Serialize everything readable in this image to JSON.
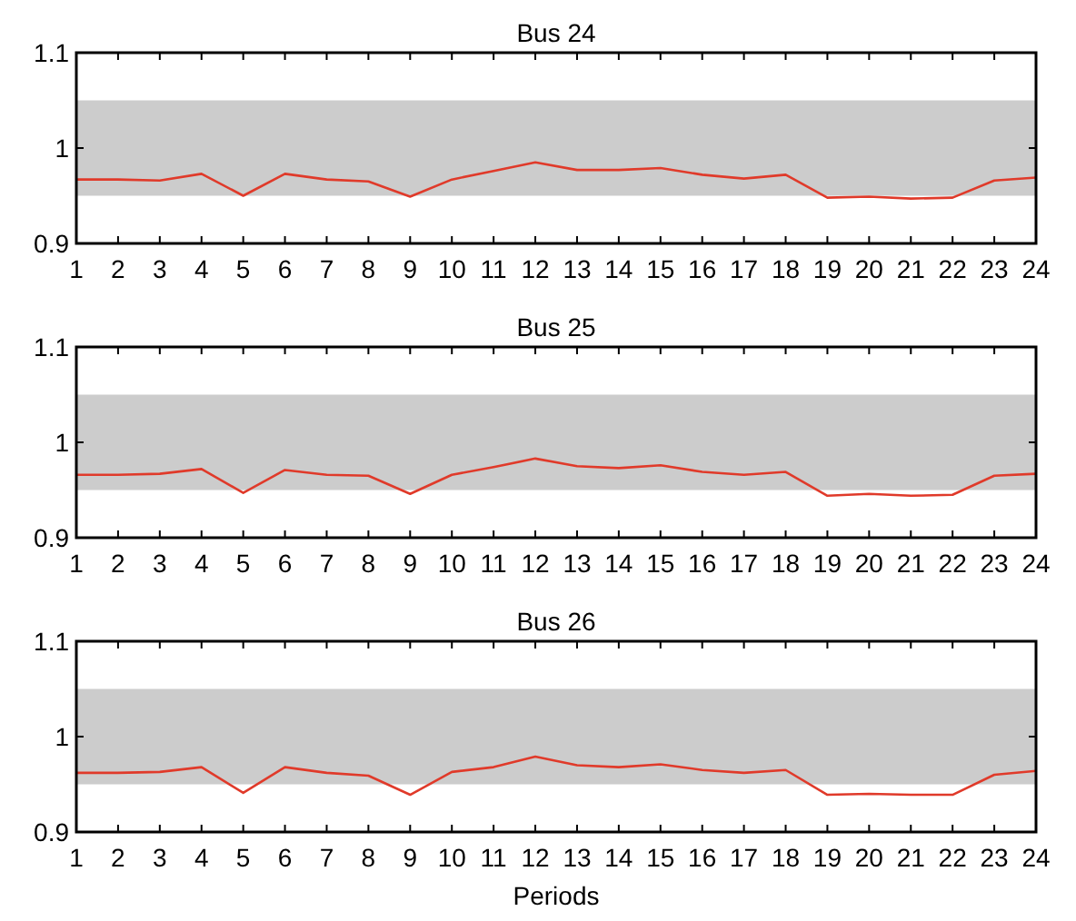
{
  "chart_data": [
    {
      "type": "line",
      "title": "Bus 24",
      "x": [
        1,
        2,
        3,
        4,
        5,
        6,
        7,
        8,
        9,
        10,
        11,
        12,
        13,
        14,
        15,
        16,
        17,
        18,
        19,
        20,
        21,
        22,
        23,
        24
      ],
      "series": [
        {
          "color": "#e03a2a",
          "values": [
            0.967,
            0.967,
            0.966,
            0.973,
            0.95,
            0.973,
            0.967,
            0.965,
            0.949,
            0.967,
            0.976,
            0.985,
            0.977,
            0.977,
            0.979,
            0.972,
            0.968,
            0.972,
            0.948,
            0.949,
            0.947,
            0.948,
            0.966,
            0.969
          ]
        }
      ],
      "xlim": [
        1,
        24
      ],
      "xticks": [
        1,
        2,
        3,
        4,
        5,
        6,
        7,
        8,
        9,
        10,
        11,
        12,
        13,
        14,
        15,
        16,
        17,
        18,
        19,
        20,
        21,
        22,
        23,
        24
      ],
      "ylim": [
        0.9,
        1.1
      ],
      "yticks": [
        0.9,
        1,
        1.1
      ],
      "bands": [
        {
          "axis": "y",
          "from": 0.95,
          "to": 1.05,
          "color": "#cccccc"
        }
      ],
      "grid": false
    },
    {
      "type": "line",
      "title": "Bus 25",
      "x": [
        1,
        2,
        3,
        4,
        5,
        6,
        7,
        8,
        9,
        10,
        11,
        12,
        13,
        14,
        15,
        16,
        17,
        18,
        19,
        20,
        21,
        22,
        23,
        24
      ],
      "series": [
        {
          "color": "#e03a2a",
          "values": [
            0.966,
            0.966,
            0.967,
            0.972,
            0.947,
            0.971,
            0.966,
            0.965,
            0.946,
            0.966,
            0.974,
            0.983,
            0.975,
            0.973,
            0.976,
            0.969,
            0.966,
            0.969,
            0.944,
            0.946,
            0.944,
            0.945,
            0.965,
            0.967
          ]
        }
      ],
      "xlim": [
        1,
        24
      ],
      "xticks": [
        1,
        2,
        3,
        4,
        5,
        6,
        7,
        8,
        9,
        10,
        11,
        12,
        13,
        14,
        15,
        16,
        17,
        18,
        19,
        20,
        21,
        22,
        23,
        24
      ],
      "ylim": [
        0.9,
        1.1
      ],
      "yticks": [
        0.9,
        1,
        1.1
      ],
      "bands": [
        {
          "axis": "y",
          "from": 0.95,
          "to": 1.05,
          "color": "#cccccc"
        }
      ],
      "grid": false
    },
    {
      "type": "line",
      "title": "Bus 26",
      "xlabel": "Periods",
      "x": [
        1,
        2,
        3,
        4,
        5,
        6,
        7,
        8,
        9,
        10,
        11,
        12,
        13,
        14,
        15,
        16,
        17,
        18,
        19,
        20,
        21,
        22,
        23,
        24
      ],
      "series": [
        {
          "color": "#e03a2a",
          "values": [
            0.962,
            0.962,
            0.963,
            0.968,
            0.941,
            0.968,
            0.962,
            0.959,
            0.939,
            0.963,
            0.968,
            0.979,
            0.97,
            0.968,
            0.971,
            0.965,
            0.962,
            0.965,
            0.939,
            0.94,
            0.939,
            0.939,
            0.96,
            0.964
          ]
        }
      ],
      "xlim": [
        1,
        24
      ],
      "xticks": [
        1,
        2,
        3,
        4,
        5,
        6,
        7,
        8,
        9,
        10,
        11,
        12,
        13,
        14,
        15,
        16,
        17,
        18,
        19,
        20,
        21,
        22,
        23,
        24
      ],
      "ylim": [
        0.9,
        1.1
      ],
      "yticks": [
        0.9,
        1,
        1.1
      ],
      "bands": [
        {
          "axis": "y",
          "from": 0.95,
          "to": 1.05,
          "color": "#cccccc"
        }
      ],
      "grid": false
    }
  ]
}
